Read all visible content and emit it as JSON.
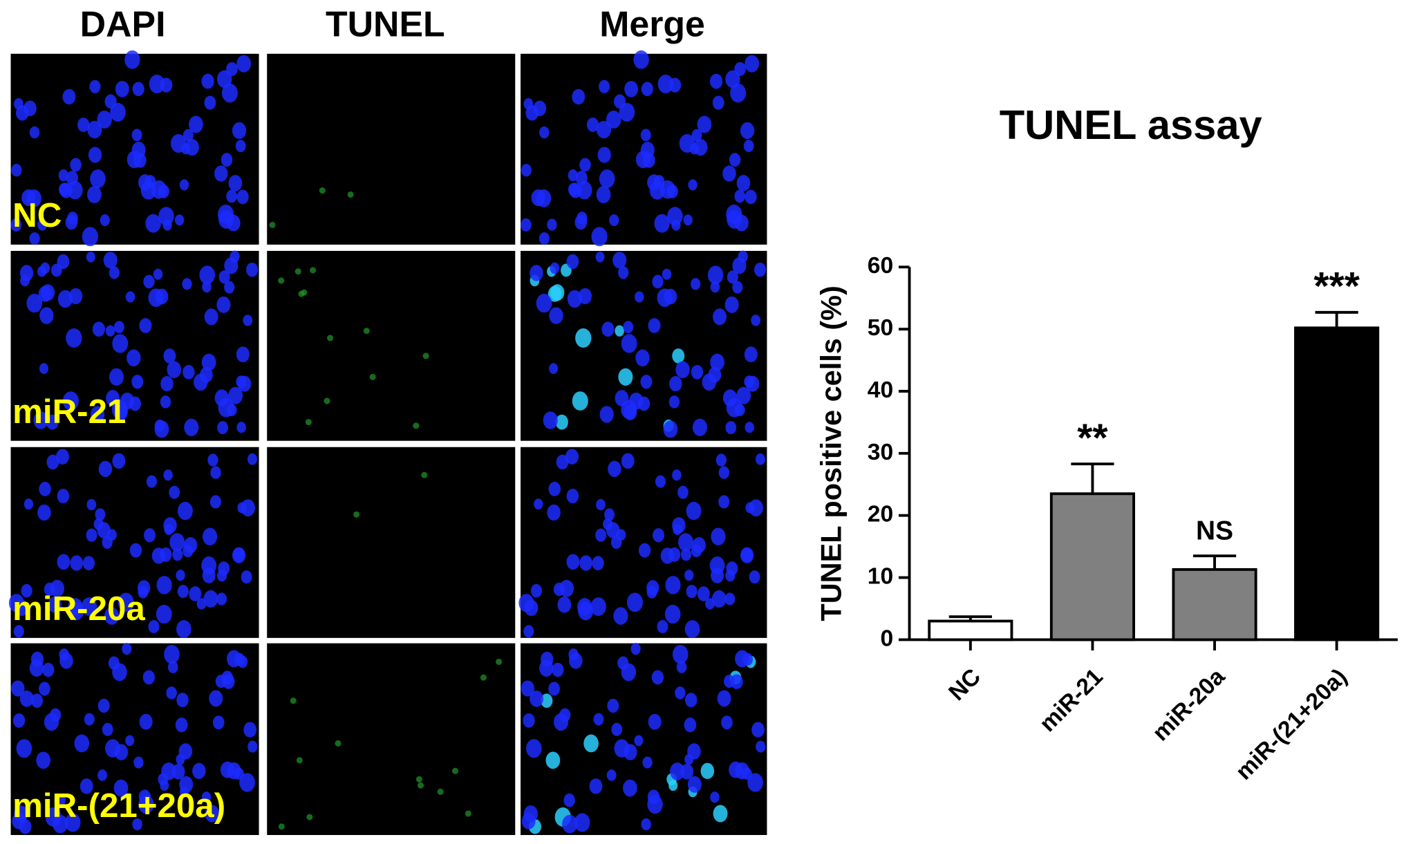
{
  "panels": {
    "columns": [
      "DAPI",
      "TUNEL",
      "Merge"
    ],
    "rows": [
      "NC",
      "miR-21",
      "miR-20a",
      "miR-(21+20a)"
    ]
  },
  "chart_data": {
    "type": "bar",
    "title": "TUNEL assay",
    "y_label": "TUNEL positive cells (%)",
    "categories": [
      "NC",
      "miR-21",
      "miR-20a",
      "miR-(21+20a)"
    ],
    "values": [
      3,
      23.5,
      11.3,
      50.2
    ],
    "errors": [
      0.7,
      4.8,
      2.2,
      2.5
    ],
    "colors": [
      "#ffffff",
      "#808080",
      "#808080",
      "#000000"
    ],
    "significance": [
      null,
      "**",
      "NS",
      "***"
    ],
    "ylim": [
      0,
      60
    ],
    "yticks": [
      0,
      10,
      20,
      30,
      40,
      50,
      60
    ],
    "grid": false
  }
}
